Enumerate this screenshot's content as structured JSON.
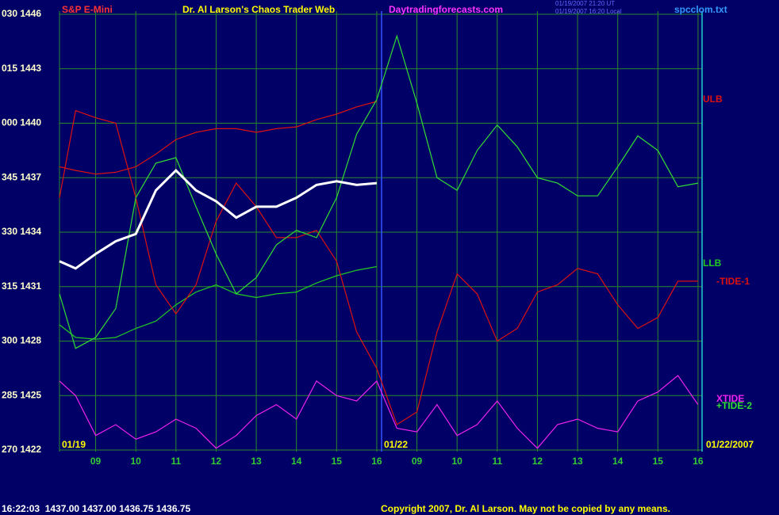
{
  "chart_data": {
    "type": "line",
    "title": "Dr. Al Larson's Chaos Trader Web",
    "instrument": "S&P E-Mini",
    "site": "Daytradingforecasts.com",
    "timestamps": [
      "01/19/2007 21:20 UT",
      "01/19/2007 16:20 Local"
    ],
    "file": "spcclom.txt",
    "date_labels": [
      "01/19",
      "01/22",
      "01/22/2007"
    ],
    "footer_quote": "16:22:03  1437.00 1437.00 1436.75 1436.75",
    "copyright": "Copyright 2007, Dr. Al Larson. May not be copied by any means.",
    "grid": true,
    "background": "#000066",
    "grid_color": "#2a8a2a",
    "xlim": [
      0.1,
      16.1
    ],
    "ylim": [
      1422,
      1446
    ],
    "yticks": [
      {
        "value": 1446,
        "label": "030 1446"
      },
      {
        "value": 1443,
        "label": "015 1443"
      },
      {
        "value": 1440,
        "label": "000 1440"
      },
      {
        "value": 1437,
        "label": "345 1437"
      },
      {
        "value": 1434,
        "label": "330 1434"
      },
      {
        "value": 1431,
        "label": "315 1431"
      },
      {
        "value": 1428,
        "label": "300 1428"
      },
      {
        "value": 1425,
        "label": "285 1425"
      },
      {
        "value": 1422,
        "label": "270 1422"
      }
    ],
    "xticks": [
      {
        "value": 1,
        "label": "09"
      },
      {
        "value": 2,
        "label": "10"
      },
      {
        "value": 3,
        "label": "11"
      },
      {
        "value": 4,
        "label": "12"
      },
      {
        "value": 5,
        "label": "13"
      },
      {
        "value": 6,
        "label": "14"
      },
      {
        "value": 7,
        "label": "15"
      },
      {
        "value": 8,
        "label": "16"
      },
      {
        "value": 9,
        "label": "09"
      },
      {
        "value": 10,
        "label": "10"
      },
      {
        "value": 11,
        "label": "11"
      },
      {
        "value": 12,
        "label": "12"
      },
      {
        "value": 13,
        "label": "13"
      },
      {
        "value": 14,
        "label": "14"
      },
      {
        "value": 15,
        "label": "15"
      },
      {
        "value": 16,
        "label": "16"
      }
    ],
    "x": [
      0.1,
      0.5,
      1,
      1.5,
      2,
      2.5,
      3,
      3.5,
      4,
      4.5,
      5,
      5.5,
      6,
      6.5,
      7,
      7.5,
      8,
      8.5,
      9,
      9.5,
      10,
      10.5,
      11,
      11.5,
      12,
      12.5,
      13,
      13.5,
      14,
      14.5,
      15,
      15.5,
      16
    ],
    "series": [
      {
        "name": "ULB",
        "color": "#dd1111",
        "values": [
          1437.6,
          1437.4,
          1437.2,
          1437.3,
          1437.6,
          1438.3,
          1439.1,
          1439.5,
          1439.7,
          1439.7,
          1439.5,
          1439.7,
          1439.8,
          1440.2,
          1440.5,
          1440.9,
          1441.2,
          null,
          null,
          null,
          null,
          null,
          null,
          null,
          null,
          null,
          null,
          null,
          null,
          null,
          null,
          null,
          null
        ]
      },
      {
        "name": "LLB",
        "color": "#22cc22",
        "values": [
          1428.9,
          1428.2,
          1428.1,
          1428.2,
          1428.7,
          1429.1,
          1430.0,
          1430.7,
          1431.1,
          1430.6,
          1430.4,
          1430.6,
          1430.7,
          1431.2,
          1431.6,
          1431.9,
          1432.1,
          null,
          null,
          null,
          null,
          null,
          null,
          null,
          null,
          null,
          null,
          null,
          null,
          null,
          null,
          null,
          null
        ]
      },
      {
        "name": "-TIDE-1",
        "color": "#dd1111",
        "values": [
          1435.9,
          1440.7,
          1440.3,
          1440.0,
          1435.9,
          1431.1,
          1429.5,
          1431.1,
          1434.6,
          1436.7,
          1435.4,
          1433.7,
          1433.7,
          1434.1,
          1432.4,
          1428.5,
          1426.5,
          1423.4,
          1424.1,
          1428.5,
          1431.7,
          1430.6,
          1428.0,
          1428.7,
          1430.7,
          1431.1,
          1432.0,
          1431.7,
          1430.0,
          1428.7,
          1429.3,
          1431.3,
          1431.3
        ]
      },
      {
        "name": "XTIDE",
        "color": "#ee22ee",
        "values": [
          1425.8,
          1425.0,
          1422.8,
          1423.4,
          1422.6,
          1423.0,
          1423.7,
          1423.2,
          1422.1,
          1422.8,
          1423.9,
          1424.5,
          1423.7,
          1425.8,
          1425.0,
          1424.7,
          1425.8,
          1423.2,
          1423.0,
          1424.5,
          1422.8,
          1423.4,
          1424.7,
          1423.2,
          1422.1,
          1423.4,
          1423.7,
          1423.2,
          1423.0,
          1424.7,
          1425.2,
          1426.1,
          1424.5
        ]
      },
      {
        "name": "+TIDE-2",
        "color": "#33dd33",
        "values": [
          1430.6,
          1427.6,
          1428.2,
          1429.8,
          1435.9,
          1437.8,
          1438.1,
          1435.4,
          1432.8,
          1430.6,
          1431.5,
          1433.3,
          1434.1,
          1433.7,
          1435.9,
          1439.4,
          1441.3,
          1444.8,
          1441.1,
          1437.0,
          1436.3,
          1438.5,
          1439.9,
          1438.7,
          1437.0,
          1436.7,
          1436.0,
          1436.0,
          1437.6,
          1439.3,
          1438.5,
          1436.5,
          1436.7
        ]
      },
      {
        "color": "#ffffff",
        "values": [
          1432.4,
          1432.0,
          1432.8,
          1433.5,
          1433.9,
          1436.3,
          1437.4,
          1436.3,
          1435.7,
          1434.8,
          1435.4,
          1435.4,
          1435.9,
          1436.6,
          1436.8,
          1436.6,
          1436.7,
          null,
          null,
          null,
          null,
          null,
          null,
          null,
          null,
          null,
          null,
          null,
          null,
          null,
          null,
          null,
          null
        ]
      }
    ]
  }
}
